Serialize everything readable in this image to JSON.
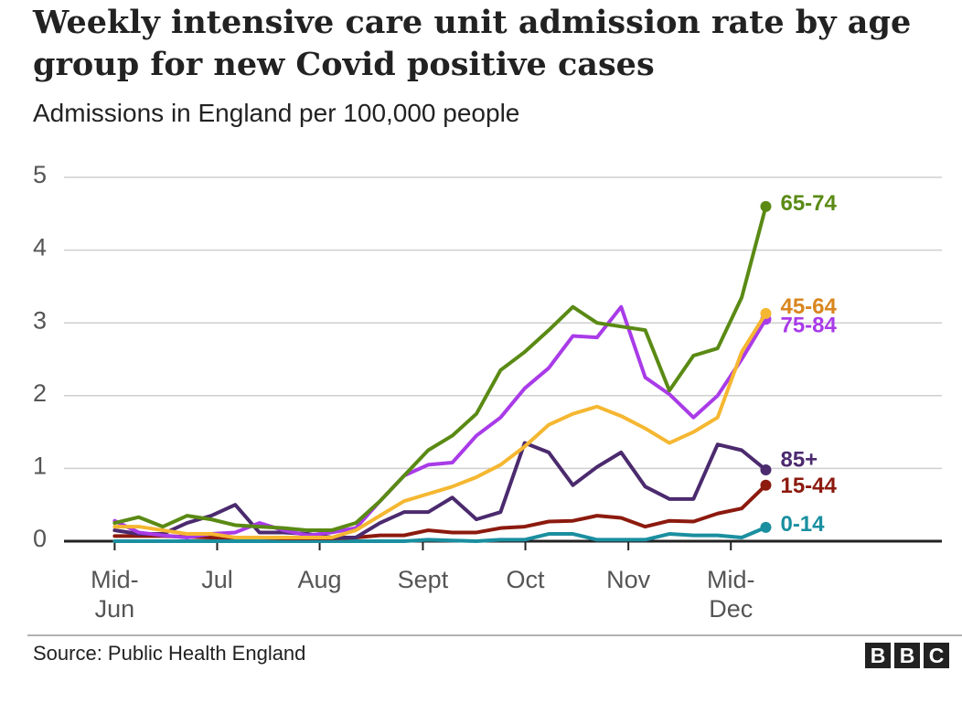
{
  "chart_data": {
    "type": "line",
    "title": "Weekly intensive care unit admission rate by age group for new Covid positive cases",
    "subtitle": "Admissions in England per 100,000 people",
    "source": "Source: Public Health England",
    "logo": "BBC",
    "x": [
      0,
      1,
      2,
      3,
      4,
      5,
      6,
      7,
      8,
      9,
      10,
      11,
      12,
      13,
      14,
      15,
      16,
      17,
      18,
      19,
      20,
      21,
      22,
      23,
      24,
      25,
      26,
      27
    ],
    "xlim": [
      -2.1,
      34.3
    ],
    "xticks": [
      {
        "value": 0,
        "label": "Mid-Jun"
      },
      {
        "value": 4.25,
        "label": "Jul"
      },
      {
        "value": 8.5,
        "label": "Aug"
      },
      {
        "value": 12.78,
        "label": "Sept"
      },
      {
        "value": 17.03,
        "label": "Oct"
      },
      {
        "value": 21.3,
        "label": "Nov"
      },
      {
        "value": 25.55,
        "label": "Mid-Dec"
      }
    ],
    "ylim": [
      0,
      5
    ],
    "yticks": [
      0,
      1,
      2,
      3,
      4,
      5
    ],
    "grid": true,
    "series": [
      {
        "name": "65-74",
        "color": "#5a8a14",
        "label_color": "#5a8a14",
        "values": [
          0.25,
          0.33,
          0.2,
          0.35,
          0.3,
          0.22,
          0.2,
          0.18,
          0.15,
          0.15,
          0.25,
          0.55,
          0.9,
          1.25,
          1.45,
          1.75,
          2.35,
          2.6,
          2.9,
          3.22,
          3.0,
          2.95,
          2.9,
          2.07,
          2.55,
          2.65,
          3.35,
          4.6
        ]
      },
      {
        "name": "45-64",
        "color": "#f5b731",
        "label_color": "#d9861e",
        "values": [
          0.2,
          0.2,
          0.15,
          0.1,
          0.1,
          0.05,
          0.05,
          0.05,
          0.05,
          0.05,
          0.15,
          0.35,
          0.55,
          0.65,
          0.75,
          0.88,
          1.05,
          1.3,
          1.6,
          1.75,
          1.85,
          1.72,
          1.55,
          1.35,
          1.5,
          1.7,
          2.6,
          3.13
        ]
      },
      {
        "name": "75-84",
        "color": "#a93be8",
        "label_color": "#a93be8",
        "values": [
          0.28,
          0.12,
          0.08,
          0.05,
          0.1,
          0.12,
          0.25,
          0.15,
          0.08,
          0.12,
          0.18,
          0.55,
          0.9,
          1.05,
          1.08,
          1.45,
          1.7,
          2.1,
          2.38,
          2.82,
          2.8,
          3.22,
          2.25,
          2.02,
          1.7,
          2.0,
          2.5,
          3.05
        ]
      },
      {
        "name": "85+",
        "color": "#4b2a6e",
        "label_color": "#4b2a6e",
        "values": [
          0.15,
          0.1,
          0.1,
          0.25,
          0.35,
          0.5,
          0.12,
          0.12,
          0.1,
          0.05,
          0.05,
          0.25,
          0.4,
          0.4,
          0.6,
          0.3,
          0.4,
          1.35,
          1.22,
          0.77,
          1.02,
          1.22,
          0.75,
          0.58,
          0.58,
          1.33,
          1.25,
          0.98
        ]
      },
      {
        "name": "15-44",
        "color": "#8c1a0e",
        "label_color": "#8c1a0e",
        "values": [
          0.07,
          0.07,
          0.07,
          0.06,
          0.05,
          0.05,
          0.05,
          0.04,
          0.04,
          0.04,
          0.05,
          0.08,
          0.08,
          0.15,
          0.12,
          0.12,
          0.18,
          0.2,
          0.27,
          0.28,
          0.35,
          0.32,
          0.2,
          0.28,
          0.27,
          0.38,
          0.45,
          0.77
        ]
      },
      {
        "name": "0-14",
        "color": "#1a8fa0",
        "label_color": "#1a8fa0",
        "values": [
          0,
          0,
          0,
          0,
          0,
          0,
          0,
          0,
          0,
          0,
          0,
          0,
          0,
          0.02,
          0.01,
          0,
          0.02,
          0.02,
          0.1,
          0.1,
          0.02,
          0.02,
          0.02,
          0.1,
          0.08,
          0.08,
          0.05,
          0.19
        ]
      }
    ]
  }
}
